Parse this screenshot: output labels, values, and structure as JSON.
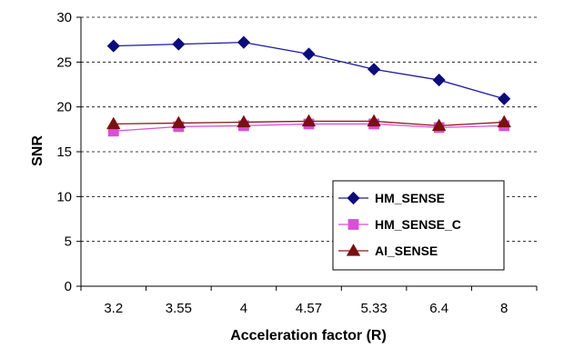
{
  "chart_data": {
    "type": "line",
    "categories": [
      "3.2",
      "3.55",
      "4",
      "4.57",
      "5.33",
      "6.4",
      "8"
    ],
    "series": [
      {
        "name": "HM_SENSE",
        "values": [
          26.8,
          27.0,
          27.2,
          25.9,
          24.2,
          23.0,
          20.9
        ],
        "color": "#0d0d7a",
        "line_color": "#1a1aa0",
        "marker": "diamond"
      },
      {
        "name": "HM_SENSE_C",
        "values": [
          17.3,
          17.8,
          17.9,
          18.1,
          18.1,
          17.7,
          17.9
        ],
        "color": "#d94fd9",
        "line_color": "#d94fd9",
        "marker": "square"
      },
      {
        "name": "AI_SENSE",
        "values": [
          18.1,
          18.2,
          18.3,
          18.4,
          18.4,
          17.9,
          18.3
        ],
        "color": "#7a1010",
        "line_color": "#8b1a1a",
        "marker": "triangle"
      }
    ],
    "xlabel": "Acceleration factor (R)",
    "ylabel": "SNR",
    "ylim": [
      0,
      30
    ],
    "yticks": [
      0,
      5,
      10,
      15,
      20,
      25,
      30
    ],
    "grid": "horizontal dashed",
    "legend_position": "lower-right"
  }
}
